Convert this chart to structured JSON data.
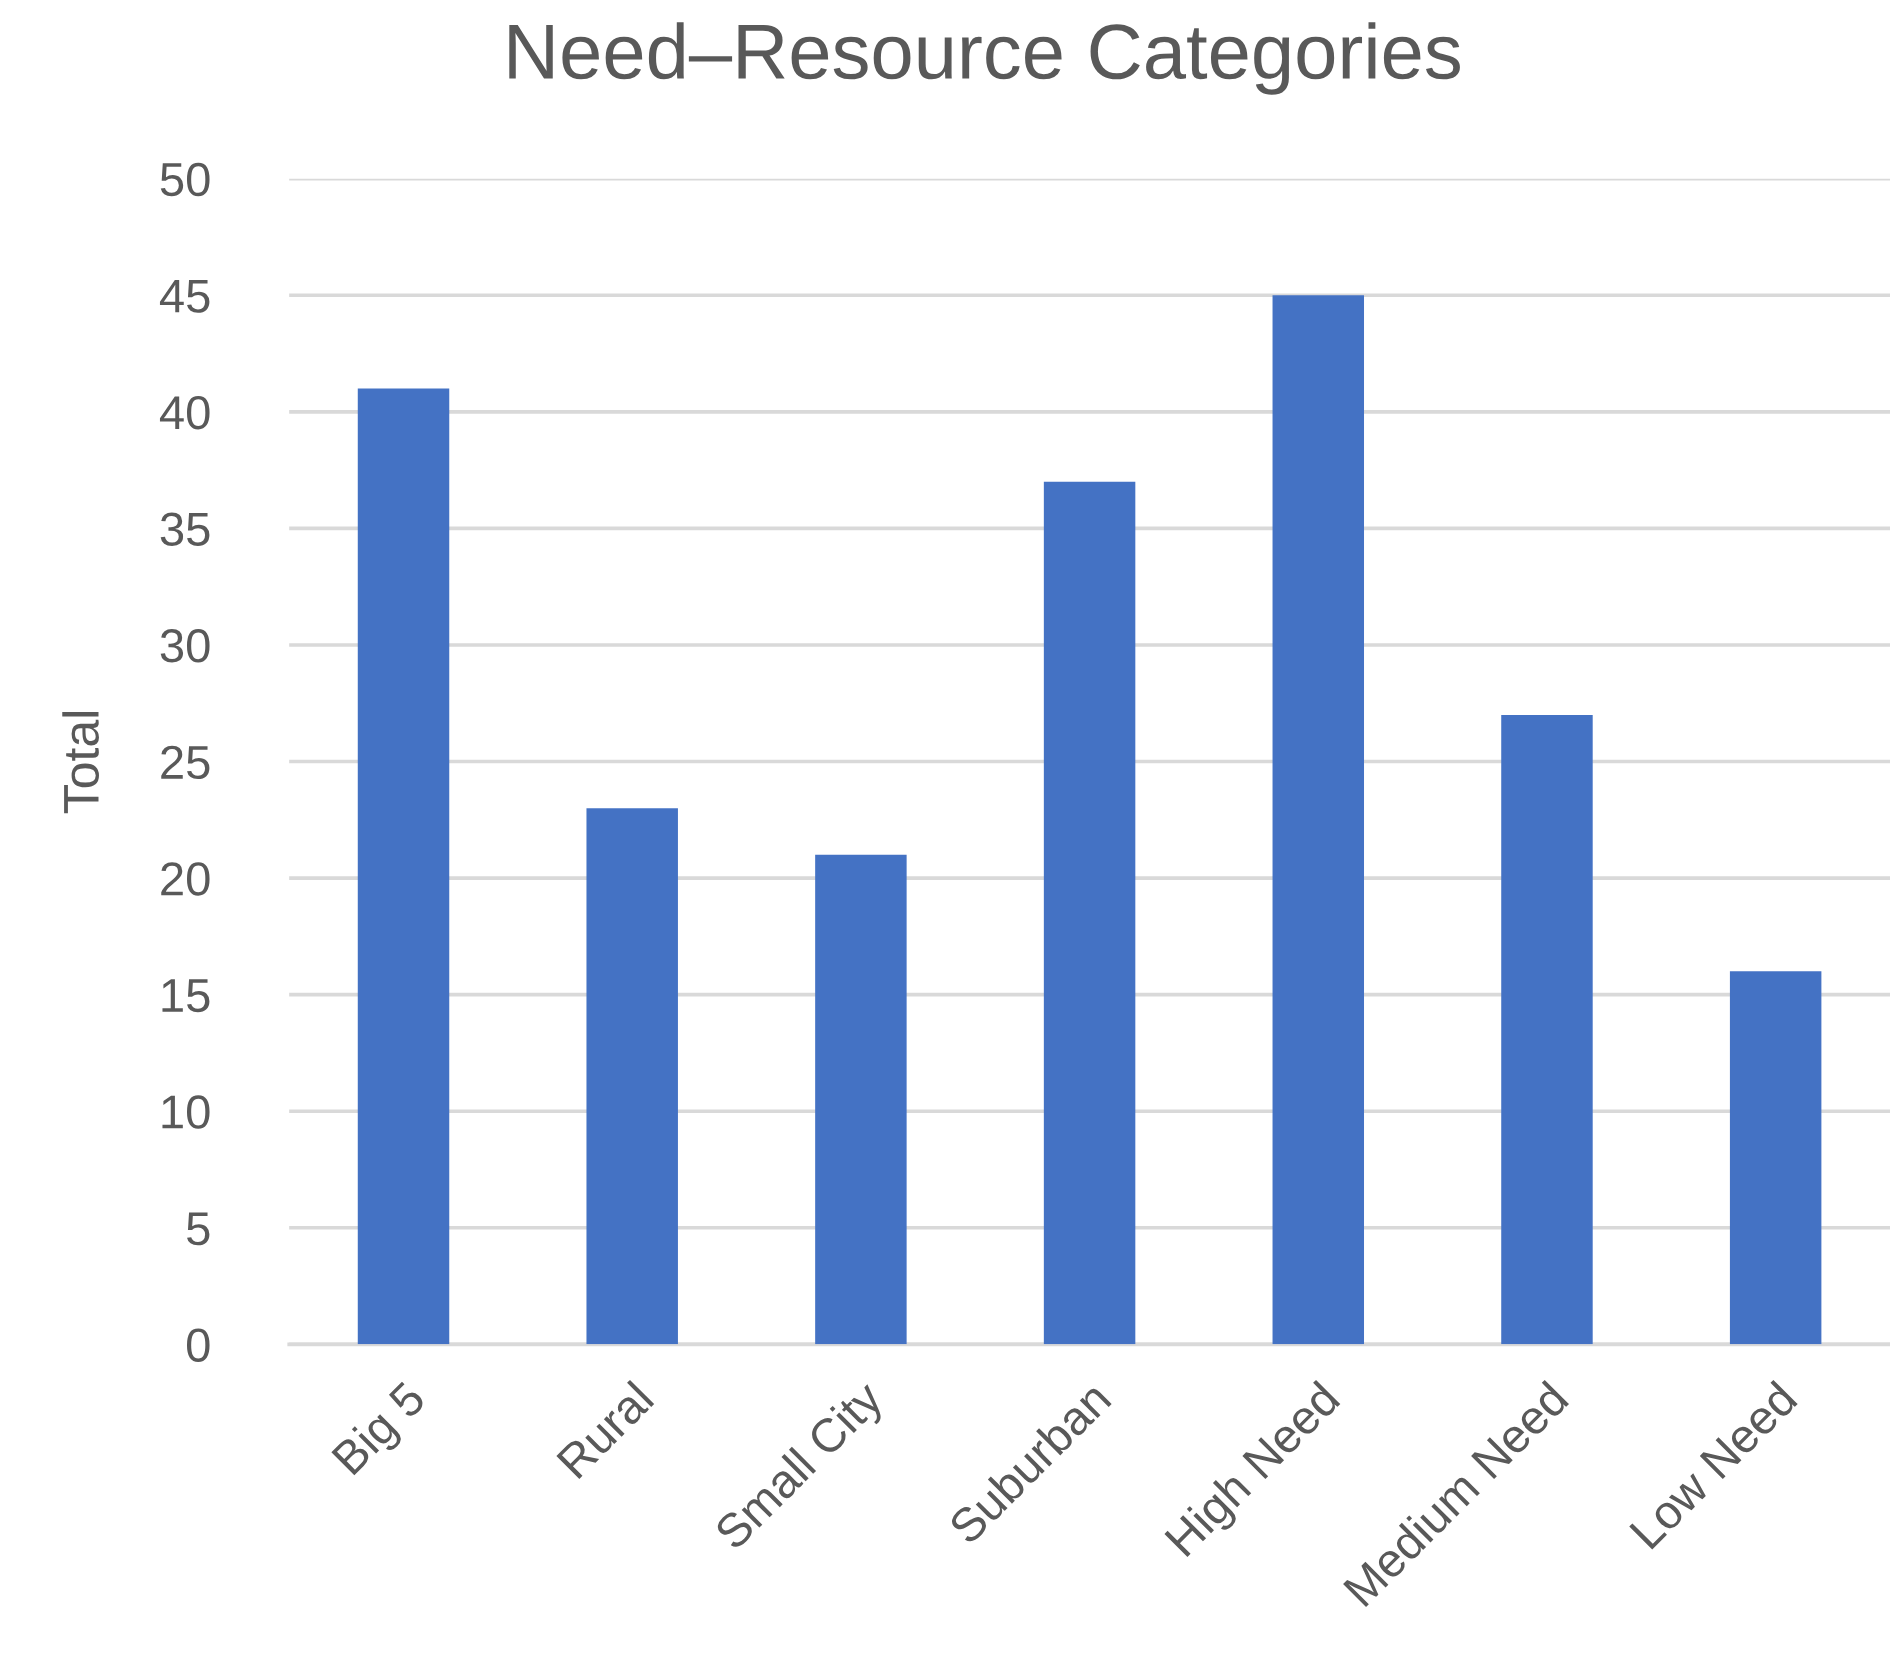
{
  "chart_data": {
    "type": "bar",
    "title": "Need–Resource Categories",
    "ylabel": "Total",
    "categories": [
      "Big 5",
      "Rural",
      "Small City",
      "Suburban",
      "High Need",
      "Medium Need",
      "Low Need"
    ],
    "values": [
      41,
      23,
      21,
      37,
      45,
      27,
      16
    ],
    "color": "#4472c4",
    "ylim": [
      0,
      50
    ],
    "yticks": [
      0,
      5,
      10,
      15,
      20,
      25,
      30,
      35,
      40,
      45,
      50
    ],
    "grid": "y"
  }
}
